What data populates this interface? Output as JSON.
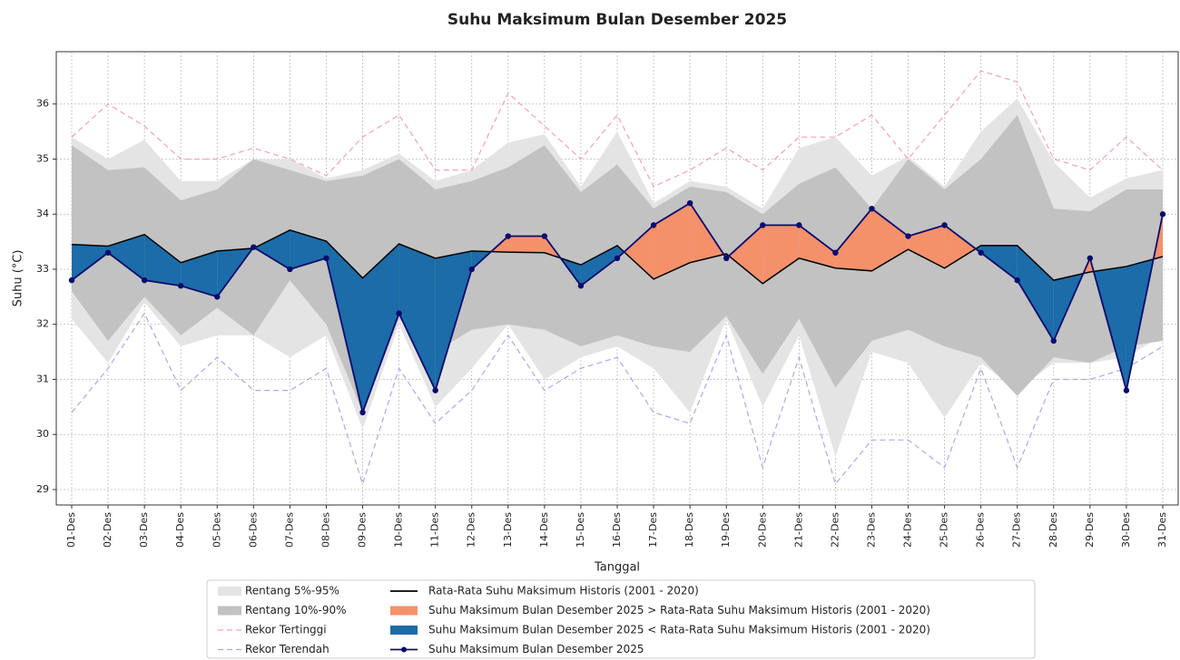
{
  "chart_data": {
    "type": "line",
    "title": "Suhu Maksimum Bulan Desember 2025",
    "x_label": "Tanggal",
    "y_label": "Suhu (°C)",
    "categories": [
      "01-Des",
      "02-Des",
      "03-Des",
      "04-Des",
      "05-Des",
      "06-Des",
      "07-Des",
      "08-Des",
      "09-Des",
      "10-Des",
      "11-Des",
      "12-Des",
      "13-Des",
      "14-Des",
      "15-Des",
      "16-Des",
      "17-Des",
      "18-Des",
      "19-Des",
      "20-Des",
      "21-Des",
      "22-Des",
      "23-Des",
      "24-Des",
      "25-Des",
      "26-Des",
      "27-Des",
      "28-Des",
      "29-Des",
      "30-Des",
      "31-Des"
    ],
    "ylim": [
      28.72,
      36.95
    ],
    "yticks": [
      29,
      30,
      31,
      32,
      33,
      34,
      35,
      36
    ],
    "grid": true,
    "legend": "bottom",
    "series": [
      {
        "name": "Rentang 5%-95%",
        "kind": "band",
        "color": "#e4e4e4",
        "upper": [
          35.4,
          35.0,
          35.35,
          34.6,
          34.6,
          35.0,
          35.0,
          34.65,
          34.8,
          35.1,
          34.6,
          34.8,
          35.3,
          35.45,
          34.5,
          35.5,
          34.2,
          34.6,
          34.5,
          34.1,
          35.2,
          35.4,
          34.7,
          35.05,
          34.5,
          35.5,
          36.1,
          34.95,
          34.3,
          34.65,
          34.8
        ],
        "lower": [
          32.1,
          31.3,
          32.4,
          31.6,
          31.8,
          31.8,
          31.4,
          31.8,
          30.1,
          32.0,
          30.5,
          31.2,
          32.0,
          31.0,
          31.4,
          31.6,
          31.2,
          30.4,
          32.1,
          30.5,
          31.8,
          29.6,
          31.5,
          31.3,
          30.3,
          31.3,
          30.8,
          31.3,
          31.3,
          31.4,
          31.8
        ]
      },
      {
        "name": "Rentang 10%-90%",
        "kind": "band",
        "color": "#c2c2c2",
        "upper": [
          35.25,
          34.8,
          34.85,
          34.25,
          34.45,
          35.0,
          34.8,
          34.6,
          34.7,
          35.0,
          34.45,
          34.6,
          34.85,
          35.25,
          34.4,
          34.9,
          34.1,
          34.5,
          34.4,
          34.0,
          34.55,
          34.85,
          34.1,
          35.0,
          34.45,
          35.0,
          35.8,
          34.1,
          34.05,
          34.45,
          34.45
        ],
        "lower": [
          32.6,
          31.7,
          32.5,
          31.8,
          32.3,
          31.8,
          32.8,
          32.0,
          30.4,
          32.1,
          31.5,
          31.9,
          32.0,
          31.9,
          31.6,
          31.8,
          31.6,
          31.5,
          32.15,
          31.1,
          32.1,
          30.85,
          31.7,
          31.9,
          31.6,
          31.4,
          30.7,
          31.4,
          31.3,
          31.6,
          31.7
        ]
      },
      {
        "name": "Rekor Tertinggi",
        "kind": "record",
        "color": "#f2a3b3",
        "values": [
          35.4,
          36.0,
          35.6,
          35.0,
          35.0,
          35.2,
          35.0,
          34.7,
          35.4,
          35.8,
          34.8,
          34.8,
          36.2,
          35.6,
          35.0,
          35.8,
          34.5,
          34.8,
          35.2,
          34.8,
          35.4,
          35.4,
          35.8,
          35.0,
          35.8,
          36.6,
          36.4,
          35.0,
          34.8,
          35.4,
          34.8
        ]
      },
      {
        "name": "Rekor Terendah",
        "kind": "record",
        "color": "#a9a9ee",
        "values": [
          30.4,
          31.2,
          32.2,
          30.8,
          31.4,
          30.8,
          30.8,
          31.2,
          29.1,
          31.2,
          30.2,
          30.8,
          31.8,
          30.8,
          31.2,
          31.4,
          30.4,
          30.2,
          31.8,
          29.4,
          31.4,
          29.1,
          29.9,
          29.9,
          29.4,
          31.2,
          29.4,
          31.0,
          31.0,
          31.2,
          31.6
        ]
      },
      {
        "name": "Rata-Rata Suhu Maksimum Historis (2001 - 2020)",
        "kind": "mean",
        "color": "#000000",
        "values": [
          33.45,
          33.42,
          33.63,
          33.12,
          33.33,
          33.38,
          33.71,
          33.51,
          32.84,
          33.46,
          33.2,
          33.33,
          33.31,
          33.3,
          33.08,
          33.43,
          32.82,
          33.12,
          33.28,
          32.74,
          33.2,
          33.02,
          32.97,
          33.36,
          33.02,
          33.43,
          33.43,
          32.8,
          32.95,
          33.05,
          33.23
        ]
      },
      {
        "name": "Suhu Maksimum Bulan Desember 2025 > Rata-Rata Suhu Maksimum Historis (2001 - 2020)",
        "kind": "fill_above",
        "color": "#f4916b"
      },
      {
        "name": "Suhu Maksimum Bulan Desember 2025 < Rata-Rata Suhu Maksimum Historis (2001 - 2020)",
        "kind": "fill_below",
        "color": "#1b6ca8"
      },
      {
        "name": "Suhu Maksimum Bulan Desember 2025",
        "kind": "actual",
        "color": "#0b0b6e",
        "values": [
          32.8,
          33.3,
          32.8,
          32.7,
          32.5,
          33.4,
          33.0,
          33.2,
          30.4,
          32.2,
          30.8,
          33.0,
          33.6,
          33.6,
          32.7,
          33.2,
          33.8,
          34.2,
          33.2,
          33.8,
          33.8,
          33.3,
          34.1,
          33.6,
          33.8,
          33.3,
          32.8,
          31.7,
          33.2,
          30.8,
          34.0
        ]
      }
    ]
  }
}
